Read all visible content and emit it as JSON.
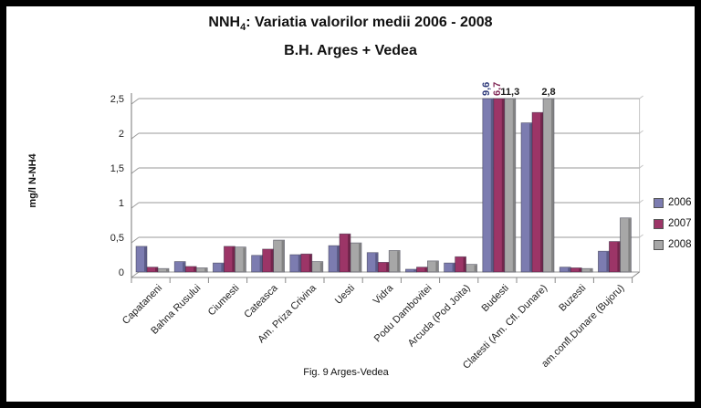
{
  "frame": {
    "border_color": "#000000",
    "background": "#ffffff"
  },
  "title": {
    "prefix": "NNH",
    "subscript": "4",
    "suffix": ": Variatia valorilor medii 2006 - 2008",
    "line2": "B.H. Arges + Vedea"
  },
  "footer": {
    "caption": "Fig. 9 Arges-Vedea"
  },
  "chart_data": {
    "type": "bar",
    "title": "NNH4: Variatia valorilor medii 2006 - 2008 / B.H. Arges + Vedea",
    "ylabel": "mg/l N-NH4",
    "xlabel": "",
    "ylim": [
      0,
      2.5
    ],
    "ytick_step": 0.5,
    "ytick_labels": [
      "0",
      "0,5",
      "1",
      "1,5",
      "2",
      "2,5"
    ],
    "decimal_separator": ",",
    "grid": true,
    "legend_position": "right",
    "note": "bars with values above 2.5 are clipped at the axis maximum and labeled",
    "categories": [
      "Capataneni",
      "Bahna Rusului",
      "Ciumesti",
      "Cateasca",
      "Am. Priza Crivina",
      "Uesti",
      "Vidra",
      "Podu Dambovitei",
      "Arcuda (Pod Joita)",
      "Budesti",
      "Clatesti (Am. Cfl. Dunare)",
      "Buzesti",
      "am.confl.Dunare (Bujoru)"
    ],
    "series": [
      {
        "name": "2006",
        "color": "#7c7cb0",
        "side_color": "#5c5c87",
        "values": [
          0.37,
          0.15,
          0.13,
          0.24,
          0.25,
          0.38,
          0.28,
          0.04,
          0.13,
          9.6,
          2.15,
          0.07,
          0.3
        ]
      },
      {
        "name": "2007",
        "color": "#9c3567",
        "side_color": "#73264c",
        "values": [
          0.07,
          0.08,
          0.37,
          0.33,
          0.26,
          0.55,
          0.14,
          0.07,
          0.22,
          6.7,
          2.3,
          0.06,
          0.44
        ]
      },
      {
        "name": "2008",
        "color": "#a7a7a7",
        "side_color": "#828282",
        "values": [
          0.05,
          0.06,
          0.36,
          0.46,
          0.15,
          0.42,
          0.31,
          0.16,
          0.11,
          11.3,
          2.8,
          0.05,
          0.78
        ]
      }
    ],
    "annotations": [
      {
        "category": "Budesti",
        "series": "2006",
        "text": "9,6",
        "rotated": true,
        "color": "#2e3a7a"
      },
      {
        "category": "Budesti",
        "series": "2007",
        "text": "6,7",
        "rotated": true,
        "color": "#822a58"
      },
      {
        "category": "Budesti",
        "series": "2008",
        "text": "11,3",
        "rotated": false,
        "color": "#1a1a1a"
      },
      {
        "category": "Clatesti (Am. Cfl. Dunare)",
        "series": "2008",
        "text": "2,8",
        "rotated": false,
        "color": "#1a1a1a"
      }
    ]
  },
  "legend": {
    "items": [
      {
        "label": "2006"
      },
      {
        "label": "2007"
      },
      {
        "label": "2008"
      }
    ]
  }
}
